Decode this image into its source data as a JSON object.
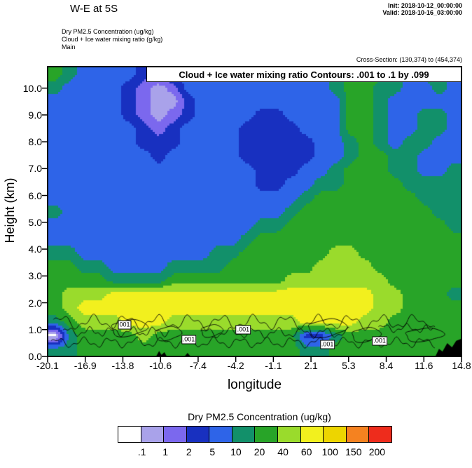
{
  "header": {
    "title": "W-E at 5S",
    "init": "Init: 2018-10-12_00:00:00",
    "valid": "Valid: 2018-10-16_03:00:00"
  },
  "annotations": {
    "line1": "Dry PM2.5 Concentration   (ug/kg)",
    "line2": "Cloud + Ice water mixing ratio   (g/kg)",
    "line3": "Main",
    "cross_section": "Cross-Section: (130,374) to (454,374)"
  },
  "plot": {
    "inner_title": "Cloud + Ice water mixing ratio Contours: .001 to .1 by .099",
    "xlabel": "longitude",
    "ylabel": "Height (km)"
  },
  "colorbar": {
    "title": "Dry PM2.5 Concentration  (ug/kg)",
    "tick_labels": [
      ".1",
      "1",
      "2",
      "5",
      "10",
      "20",
      "40",
      "60",
      "100",
      "150",
      "200"
    ]
  },
  "chart_data": {
    "type": "heatmap",
    "title": "Cloud + Ice water mixing ratio Contours: .001 to .1 by .099",
    "xlabel": "longitude",
    "ylabel": "Height (km)",
    "xlim": [
      -20.1,
      14.8
    ],
    "ylim": [
      0,
      10.8
    ],
    "x_tick_labels": [
      "-20.1",
      "-16.9",
      "-13.8",
      "-10.6",
      "-7.4",
      "-4.2",
      "-1.1",
      "2.1",
      "5.3",
      "8.4",
      "11.6",
      "14.8"
    ],
    "y_ticks": [
      0,
      1,
      2,
      3,
      4,
      5,
      6,
      7,
      8,
      9,
      10
    ],
    "y_tick_labels": [
      "0.0",
      "1.0",
      "2.0",
      "3.0",
      "4.0",
      "5.0",
      "6.0",
      "7.0",
      "8.0",
      "9.0",
      "10.0"
    ],
    "levels": [
      0.1,
      1,
      2,
      5,
      10,
      20,
      40,
      60,
      100,
      150,
      200
    ],
    "palette": [
      "#ffffff",
      "#a9a2ea",
      "#7b68ee",
      "#1830c0",
      "#2e64e8",
      "#12906a",
      "#28a428",
      "#9adb2c",
      "#f2f01e",
      "#edd500",
      "#f58220",
      "#ee2c1c"
    ],
    "grid": {
      "cols": 28,
      "rows": 21,
      "legend": "each char is a PM2.5 color-level index 0-8, rows listed top (10.8km) to bottom (0km)",
      "levels_rows_top_to_bottom": [
        "6544443344444444444566654554",
        "5444432124444444444566554454",
        "4444432113444444444466544444",
        "4444432123444433444466544554",
        "4444443234444333344466544554",
        "4444443334444333334456545544",
        "4444444344444333334456655444",
        "4444444444444433344566655445",
        "4444444444444433445566665555",
        "4444444444444444456666666555",
        "5444444444444444566666666655",
        "4444444444444455666666666665",
        "4444444444444566666666666666",
        "5544444444455666666776666666",
        "6655444455556666667777666666",
        "6666555566666666777777766666",
        "6777888888888888888888776665",
        "6788888888888888888888776666",
        "5677788877777777788887766666",
        "0566667666666666633566666666",
        "5566666666666666655666666666"
      ]
    },
    "contours": {
      "color": "#000000",
      "interval_text": ".001 to .1 by .099",
      "open_lines": [
        {
          "x0": -19.6,
          "x1": 12.4,
          "y": 1.28,
          "amp": 0.2,
          "period": 2.7
        },
        {
          "x0": -19.8,
          "x1": 12.6,
          "y": 0.52,
          "amp": 0.14,
          "period": 2.2
        },
        {
          "x0": -18.8,
          "x1": -9.8,
          "y": 0.92,
          "amp": 0.13,
          "period": 1.8
        },
        {
          "x0": -7.2,
          "x1": 5.4,
          "y": 0.88,
          "amp": 0.14,
          "period": 2.0
        },
        {
          "x0": 7.8,
          "x1": 12.6,
          "y": 1.05,
          "amp": 0.12,
          "period": 1.9
        }
      ],
      "closed_loops": [
        {
          "cx": -13.3,
          "cy": 1.05,
          "rx": 1.5,
          "ry": 0.3
        },
        {
          "cx": -10.0,
          "cy": 0.85,
          "rx": 1.1,
          "ry": 0.25
        },
        {
          "cx": -6.3,
          "cy": 0.95,
          "rx": 0.9,
          "ry": 0.22
        },
        {
          "cx": 3.4,
          "cy": 1.05,
          "rx": 1.6,
          "ry": 0.33
        },
        {
          "cx": 6.7,
          "cy": 0.8,
          "rx": 1.2,
          "ry": 0.26
        },
        {
          "cx": 11.6,
          "cy": 0.8,
          "rx": 1.6,
          "ry": 0.24
        }
      ]
    },
    "contour_labels": [
      {
        "text": "001",
        "x": -13.6,
        "y": 1.18
      },
      {
        "text": ".001",
        "x": -8.2,
        "y": 0.62
      },
      {
        "text": ".001",
        "x": -3.6,
        "y": 1.0
      },
      {
        "text": ".001",
        "x": 3.5,
        "y": 0.45
      },
      {
        "text": ".001",
        "x": 7.9,
        "y": 0.58
      }
    ],
    "terrain": {
      "color": "#000000",
      "polygons": [
        [
          [
            12.6,
            0
          ],
          [
            12.9,
            0.28
          ],
          [
            13.2,
            0.18
          ],
          [
            13.6,
            0.5
          ],
          [
            14.0,
            0.34
          ],
          [
            14.35,
            0.58
          ],
          [
            14.8,
            0.66
          ],
          [
            14.8,
            0
          ]
        ],
        [
          [
            -10.95,
            0
          ],
          [
            -10.7,
            0.2
          ],
          [
            -10.5,
            0.06
          ],
          [
            -10.25,
            0.16
          ],
          [
            -10.05,
            0
          ]
        ],
        [
          [
            -8.55,
            0
          ],
          [
            -8.3,
            0.13
          ],
          [
            -8.05,
            0
          ]
        ]
      ]
    }
  }
}
